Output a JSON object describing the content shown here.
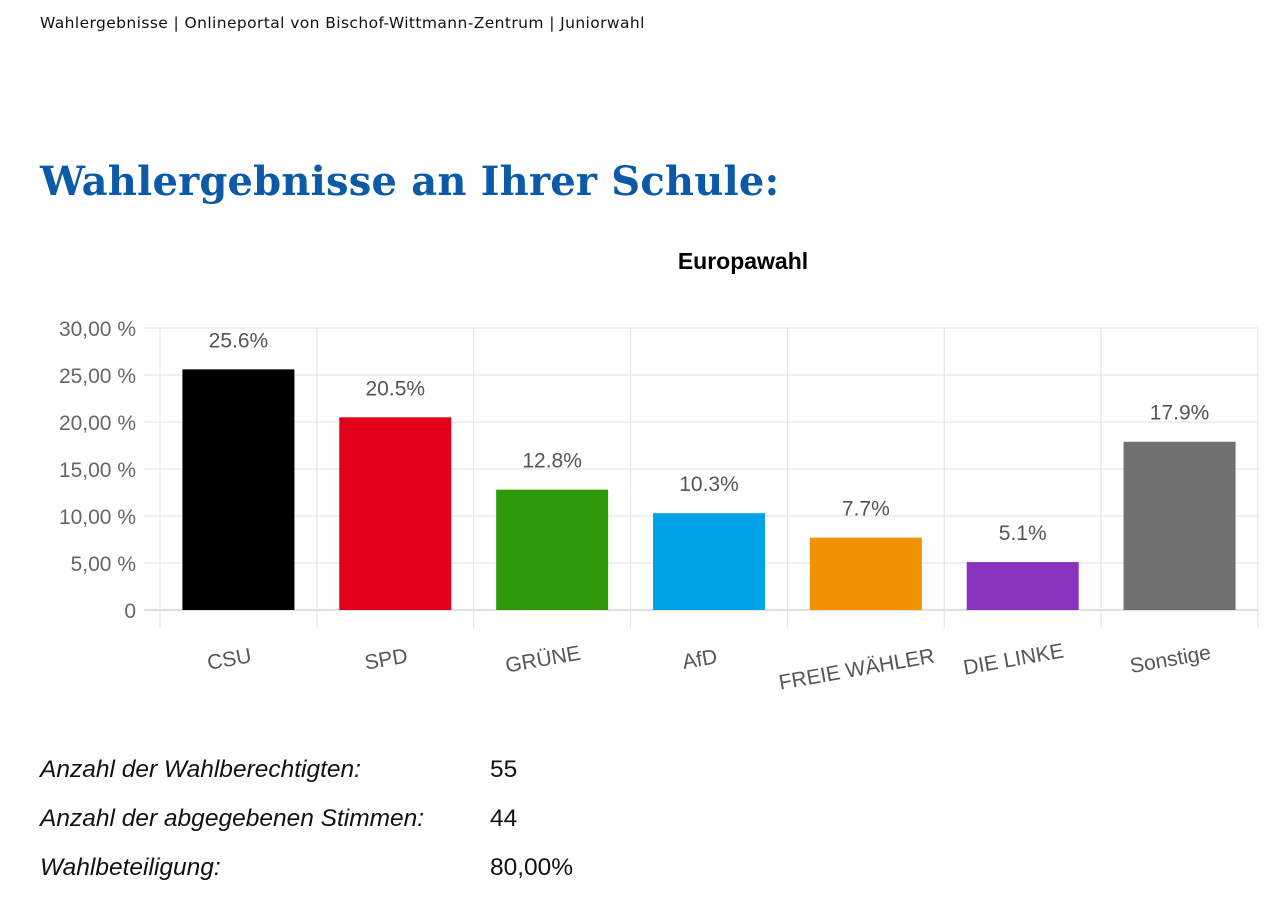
{
  "header": {
    "breadcrumb": "Wahlergebnisse | Onlineportal von Bischof-Wittmann-Zentrum | Juniorwahl"
  },
  "page": {
    "title": "Wahlergebnisse an Ihrer Schule:"
  },
  "chart_data": {
    "type": "bar",
    "title": "Europawahl",
    "xlabel": "",
    "ylabel": "",
    "ylim": [
      0,
      30
    ],
    "grid": true,
    "yticks": [
      "0",
      "5,00 %",
      "10,00 %",
      "15,00 %",
      "20,00 %",
      "25,00 %",
      "30,00 %"
    ],
    "categories": [
      "CSU",
      "SPD",
      "GRÜNE",
      "AfD",
      "FREIE WÄHLER",
      "DIE LINKE",
      "Sonstige"
    ],
    "values": [
      25.6,
      20.5,
      12.8,
      10.3,
      7.7,
      5.1,
      17.9
    ],
    "data_labels": [
      "25.6%",
      "20.5%",
      "12.8%",
      "10.3%",
      "7.7%",
      "5.1%",
      "17.9%"
    ],
    "colors": [
      "#000000",
      "#e3001b",
      "#2e9a0a",
      "#00a3e8",
      "#f29100",
      "#8a33c0",
      "#707070"
    ]
  },
  "stats": [
    {
      "label": "Anzahl der Wahlberechtigten:",
      "value": "55"
    },
    {
      "label": "Anzahl der abgegebenen Stimmen:",
      "value": "44"
    },
    {
      "label": "Wahlbeteiligung:",
      "value": "80,00%"
    }
  ]
}
